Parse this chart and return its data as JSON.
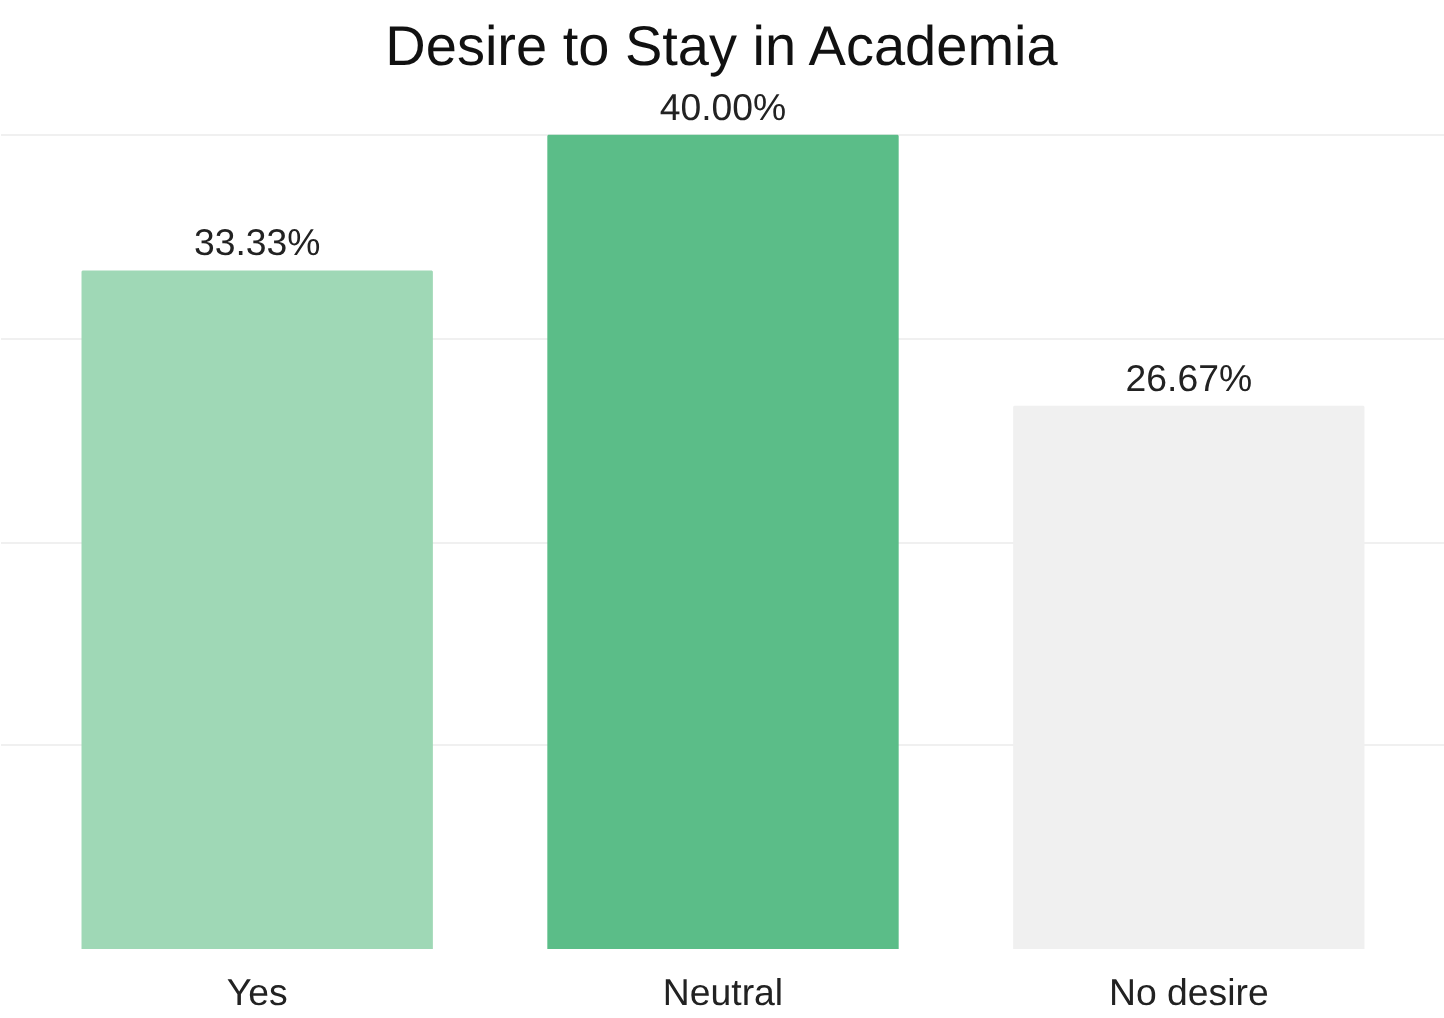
{
  "chart_data": {
    "type": "bar",
    "title": "Desire to Stay in Academia",
    "categories": [
      "Yes",
      "Neutral",
      "No desire"
    ],
    "values": [
      33.33,
      40.0,
      26.67
    ],
    "colors": [
      "#9fd8b6",
      "#5bbd88",
      "#f0f0f0"
    ],
    "value_labels": [
      "33.33%",
      "40.00%",
      "26.67%"
    ],
    "grid": "y",
    "tick_labels": "x"
  }
}
